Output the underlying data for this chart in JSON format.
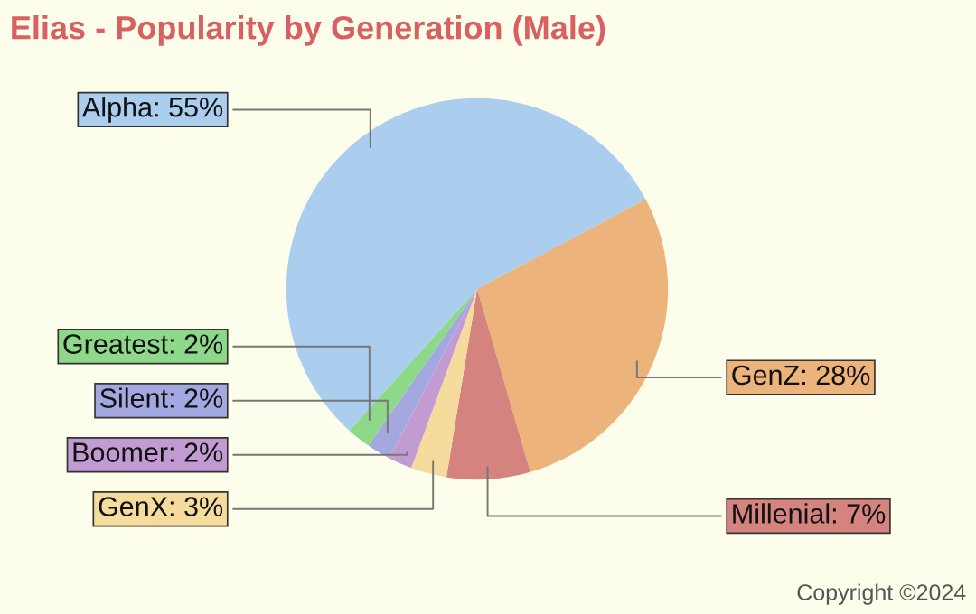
{
  "chart_data": {
    "type": "pie",
    "title": "Elias - Popularity by Generation (Male)",
    "categories": [
      "Alpha: 55%",
      "GenZ: 28%",
      "Millenial: 7%",
      "GenX: 3%",
      "Boomer: 2%",
      "Silent: 2%",
      "Greatest: 2%"
    ],
    "values": [
      55,
      28,
      7,
      3,
      2,
      2,
      2
    ],
    "colors": [
      "#abcdee",
      "#ecb47a",
      "#d4837f",
      "#f6dc9c",
      "#c39bd3",
      "#a4a8e0",
      "#8ed88a"
    ],
    "annotations": [
      "Copyright ©2024"
    ]
  }
}
